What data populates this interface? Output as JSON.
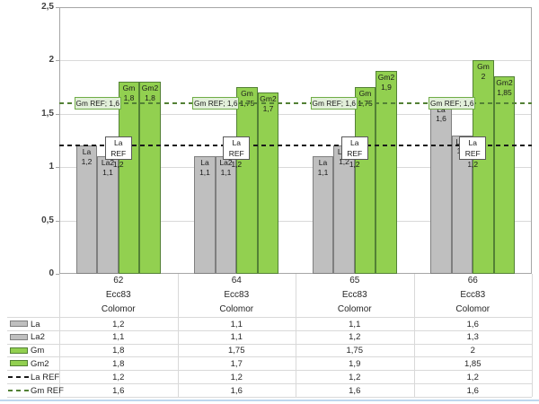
{
  "chart_data": {
    "type": "bar",
    "title": "",
    "grid": true,
    "legend_position": "table-left",
    "data_table_shown": true,
    "y_axis": {
      "min": 0,
      "max": 2.5,
      "step": 0.5,
      "ticks": [
        "0",
        "0,5",
        "1",
        "1,5",
        "2",
        "2,5"
      ]
    },
    "categories": [
      {
        "lines": [
          "62",
          "Ecc83",
          "Colomor"
        ]
      },
      {
        "lines": [
          "64",
          "Ecc83",
          "Colomor"
        ]
      },
      {
        "lines": [
          "65",
          "Ecc83",
          "Colomor"
        ]
      },
      {
        "lines": [
          "66",
          "Ecc83",
          "Colomor"
        ]
      }
    ],
    "series": [
      {
        "name": "La",
        "kind": "bar",
        "color": "gray",
        "values": [
          1.2,
          1.1,
          1.1,
          1.6
        ],
        "labels": [
          "1,2",
          "1,1",
          "1,1",
          "1,6"
        ]
      },
      {
        "name": "La2",
        "kind": "bar",
        "color": "gray",
        "values": [
          1.1,
          1.1,
          1.2,
          1.3
        ],
        "labels": [
          "1,1",
          "1,1",
          "1,2",
          "1,3"
        ]
      },
      {
        "name": "Gm",
        "kind": "bar",
        "color": "green",
        "values": [
          1.8,
          1.75,
          1.75,
          2
        ],
        "labels": [
          "1,8",
          "1,75",
          "1,75",
          "2"
        ]
      },
      {
        "name": "Gm2",
        "kind": "bar",
        "color": "green",
        "values": [
          1.8,
          1.7,
          1.9,
          1.85
        ],
        "labels": [
          "1,8",
          "1,7",
          "1,9",
          "1,85"
        ]
      },
      {
        "name": "La REF",
        "kind": "line",
        "color": "black_dashed",
        "values": [
          1.2,
          1.2,
          1.2,
          1.2
        ],
        "labels": [
          "1,2",
          "1,2",
          "1,2",
          "1,2"
        ]
      },
      {
        "name": "Gm REF",
        "kind": "line",
        "color": "green_dashed",
        "values": [
          1.6,
          1.6,
          1.6,
          1.6
        ],
        "labels": [
          "1,6",
          "1,6",
          "1,6",
          "1,6"
        ]
      }
    ],
    "ref_callouts": {
      "gm": {
        "text": "Gm REF; 1,6",
        "value": 1.6
      },
      "la": {
        "line1": "La REF",
        "line2": "1,2",
        "value": 1.2
      }
    }
  },
  "colors": {
    "bar_gray": "#BFBFBF",
    "bar_gray_border": "#7F7F7F",
    "bar_green": "#92D050",
    "bar_green_border": "#538135",
    "la_ref_line": "#1A1A1A",
    "gm_ref_line": "#538135",
    "gm_ref_box_fill": "#E2EFDA",
    "gm_ref_box_border": "#70AD47",
    "la_ref_box_fill": "#FFFFFF",
    "la_ref_box_border": "#595959",
    "gridline": "#D9D9D9",
    "plot_border": "#A6A6A6",
    "table_line": "#D9D9D9",
    "axis_text": "#404040",
    "table_text": "#262626",
    "bar_label_text": "#1A1A1A",
    "bottom_edge": "#BDD7EE"
  }
}
